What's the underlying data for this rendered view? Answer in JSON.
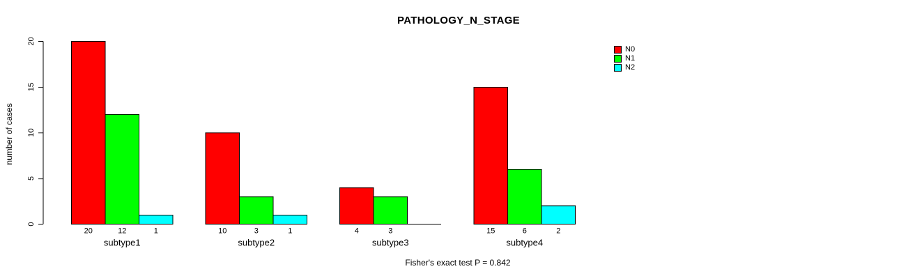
{
  "chart_data": {
    "type": "bar",
    "title": "PATHOLOGY_N_STAGE",
    "ylabel": "number of cases",
    "xlabel": "",
    "ylim": [
      0,
      20
    ],
    "yticks": [
      0,
      5,
      10,
      15,
      20
    ],
    "grid": false,
    "legend_position": "top-right",
    "categories": [
      "subtype1",
      "subtype2",
      "subtype3",
      "subtype4"
    ],
    "series": [
      {
        "name": "N0",
        "color": "#FF0000",
        "values": [
          20,
          10,
          4,
          15
        ]
      },
      {
        "name": "N1",
        "color": "#00FF00",
        "values": [
          12,
          3,
          3,
          6
        ]
      },
      {
        "name": "N2",
        "color": "#00FFFF",
        "values": [
          1,
          1,
          0,
          2
        ]
      }
    ],
    "bar_value_labels": [
      [
        "20",
        "12",
        "1"
      ],
      [
        "10",
        "3",
        "1"
      ],
      [
        "4",
        "3",
        ""
      ],
      [
        "15",
        "6",
        "2"
      ]
    ],
    "bar_border_color": "#000000",
    "axis_color": "#000000",
    "footnote": "Fisher's exact test P = 0.842"
  }
}
